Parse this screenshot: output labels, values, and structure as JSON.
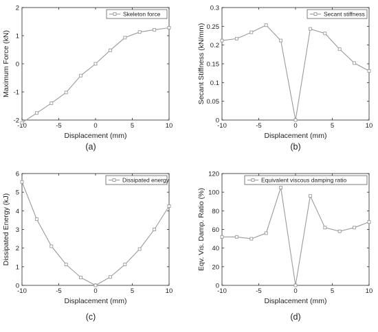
{
  "chart_data": [
    {
      "type": "line",
      "caption": "(a)",
      "xlabel": "Displacement (mm)",
      "ylabel": "Maximum Force (kN)",
      "xlim": [
        -10,
        10
      ],
      "ylim": [
        -2,
        2
      ],
      "xticks": [
        -10,
        -5,
        0,
        5,
        10
      ],
      "yticks": [
        -2,
        -1,
        0,
        1,
        2
      ],
      "ytick_labels": [
        "-2",
        "-1",
        "0",
        "1",
        "2"
      ],
      "legend": "top-right",
      "color": "#9a9a9a",
      "series": [
        {
          "name": "Skeleton force",
          "x": [
            -10,
            -8,
            -6,
            -4,
            -2,
            0,
            2,
            4,
            6,
            8,
            10
          ],
          "y": [
            -2.1,
            -1.75,
            -1.4,
            -1.02,
            -0.42,
            0.0,
            0.48,
            0.93,
            1.13,
            1.21,
            1.28
          ]
        }
      ]
    },
    {
      "type": "line",
      "caption": "(b)",
      "xlabel": "Displacement (mm)",
      "ylabel": "Secant Stiffness (kN/mm)",
      "xlim": [
        -10,
        10
      ],
      "ylim": [
        0,
        0.3
      ],
      "xticks": [
        -10,
        -5,
        0,
        5,
        10
      ],
      "yticks": [
        0,
        0.05,
        0.1,
        0.15,
        0.2,
        0.25,
        0.3
      ],
      "ytick_labels": [
        "0",
        "0.05",
        "0.1",
        "0.15",
        "0.2",
        "0.25",
        "0.3"
      ],
      "legend": "top-right",
      "color": "#9a9a9a",
      "series": [
        {
          "name": "Secant stiffness",
          "x": [
            -10,
            -8,
            -6,
            -4,
            -2,
            0,
            2,
            4,
            6,
            8,
            10
          ],
          "y": [
            0.212,
            0.217,
            0.234,
            0.253,
            0.212,
            0.0,
            0.243,
            0.231,
            0.189,
            0.152,
            0.131
          ]
        }
      ]
    },
    {
      "type": "line",
      "caption": "(c)",
      "xlabel": "Displacement (mm)",
      "ylabel": "Dissipated Energy (kJ)",
      "xlim": [
        -10,
        10
      ],
      "ylim": [
        0,
        6
      ],
      "xticks": [
        -10,
        -5,
        0,
        5,
        10
      ],
      "yticks": [
        0,
        1,
        2,
        3,
        4,
        5,
        6
      ],
      "ytick_labels": [
        "0",
        "1",
        "2",
        "3",
        "4",
        "5",
        "6"
      ],
      "legend": "top-right",
      "color": "#9a9a9a",
      "series": [
        {
          "name": "Dissipated energy",
          "x": [
            -10,
            -8,
            -6,
            -4,
            -2,
            0,
            2,
            4,
            6,
            8,
            10
          ],
          "y": [
            5.55,
            3.55,
            2.1,
            1.12,
            0.42,
            0.0,
            0.45,
            1.12,
            1.95,
            3.0,
            4.25
          ]
        }
      ]
    },
    {
      "type": "line",
      "caption": "(d)",
      "xlabel": "Displacement (mm)",
      "ylabel": "Eqv. Vis. Damp. Ratio (%)",
      "xlim": [
        -10,
        10
      ],
      "ylim": [
        0,
        120
      ],
      "xticks": [
        -10,
        -5,
        0,
        5,
        10
      ],
      "yticks": [
        0,
        20,
        40,
        60,
        80,
        100,
        120
      ],
      "ytick_labels": [
        "0",
        "20",
        "40",
        "60",
        "80",
        "100",
        "120"
      ],
      "legend": "top-right",
      "color": "#9a9a9a",
      "series": [
        {
          "name": "Equivalent viscous damping ratio",
          "x": [
            -10,
            -8,
            -6,
            -4,
            -2,
            0,
            2,
            4,
            6,
            8,
            10
          ],
          "y": [
            52,
            52,
            50,
            56,
            105,
            0,
            96,
            62,
            58,
            62,
            68
          ]
        }
      ]
    }
  ]
}
